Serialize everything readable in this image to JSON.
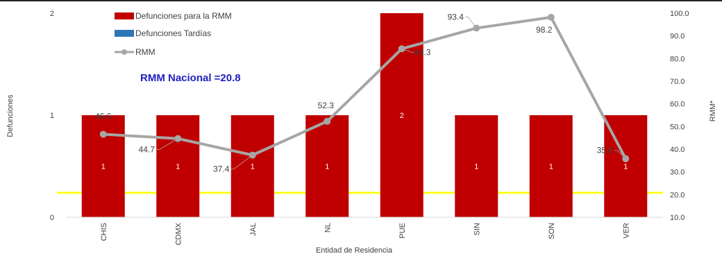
{
  "chart_data": {
    "type": "bar",
    "categories": [
      "CHIS",
      "CDMX",
      "JAL",
      "NL",
      "PUE",
      "SIN",
      "SON",
      "VER"
    ],
    "series": [
      {
        "name": "Defunciones para la RMM",
        "type": "bar",
        "axis": "left",
        "color": "#c00000",
        "values": [
          1,
          1,
          1,
          1,
          2,
          1,
          1,
          1
        ]
      },
      {
        "name": "Defunciones Tardías",
        "type": "bar",
        "axis": "left",
        "color": "#2e75b6",
        "values": [
          0,
          0,
          0,
          0,
          0,
          0,
          0,
          0
        ]
      },
      {
        "name": "RMM",
        "type": "line",
        "axis": "right",
        "color": "#a6a6a6",
        "values": [
          46.6,
          44.7,
          37.4,
          52.3,
          84.3,
          93.4,
          98.2,
          35.8
        ]
      }
    ],
    "bar_labels": [
      "1",
      "1",
      "1",
      "1",
      "2",
      "1",
      "1",
      "1"
    ],
    "line_labels": [
      "46.6",
      "44.7",
      "37.4",
      "52.3",
      "84.3",
      "93.4",
      "98.2",
      "35.8"
    ],
    "reference_line": {
      "value": 20.8,
      "axis": "right",
      "color": "#ffff00",
      "label": "RMM Nacional =20.8"
    },
    "xlabel": "Entidad de Residencia",
    "ylabel": "Defunciones",
    "y2label": "RMM*",
    "ylim": [
      0,
      2
    ],
    "y2lim": [
      10,
      100
    ],
    "yticks": [
      "0",
      "1",
      "2"
    ],
    "y2ticks": [
      "10.0",
      "20.0",
      "30.0",
      "40.0",
      "50.0",
      "60.0",
      "70.0",
      "80.0",
      "90.0",
      "100.0"
    ],
    "legend_position": "top-left"
  }
}
